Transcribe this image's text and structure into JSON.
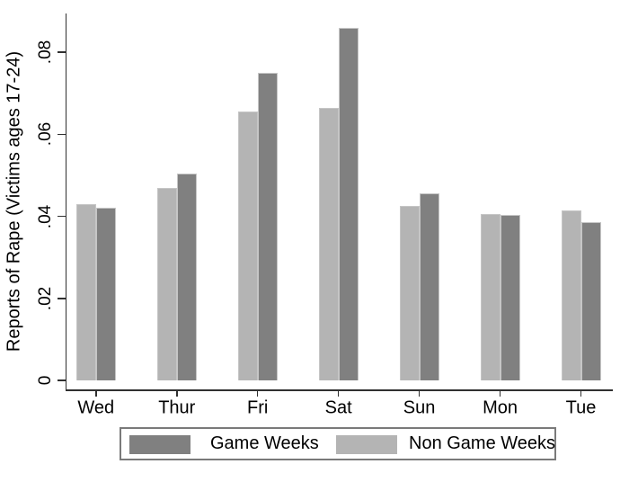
{
  "chart_data": {
    "type": "bar",
    "title": "",
    "categories": [
      "Wed",
      "Thur",
      "Fri",
      "Sat",
      "Sun",
      "Mon",
      "Tue"
    ],
    "series": [
      {
        "name": "Game Weeks",
        "color": "#808080",
        "values": [
          0.042,
          0.0505,
          0.075,
          0.086,
          0.0455,
          0.0403,
          0.0385
        ]
      },
      {
        "name": "Non Game Weeks",
        "color": "#b4b4b4",
        "values": [
          0.043,
          0.047,
          0.0655,
          0.0665,
          0.0425,
          0.0405,
          0.0415
        ]
      }
    ],
    "left_to_right_series_order": [
      1,
      0
    ],
    "xlabel": "",
    "ylabel": "Reports of Rape (Victims ages 17-24)",
    "ylim": [
      0,
      0.09
    ],
    "yticks": [
      0,
      0.02,
      0.04,
      0.06,
      0.08
    ],
    "ytick_labels": [
      "0",
      ".02",
      ".04",
      ".06",
      ".08"
    ],
    "ytick_label_rotation": -90,
    "grid": false,
    "legend_position": "bottom-center",
    "legend_border": true
  },
  "legend": {
    "items": [
      {
        "label": "Game Weeks",
        "color": "#808080"
      },
      {
        "label": "Non Game Weeks",
        "color": "#b4b4b4"
      }
    ]
  },
  "colors": {
    "background": "#ffffff",
    "axis": "#303030",
    "text": "#000000",
    "bar_game_weeks": "#808080",
    "bar_non_game_weeks": "#b4b4b4",
    "bar_outline": "#c6c6c6",
    "legend_border": "#7a7a7a"
  }
}
